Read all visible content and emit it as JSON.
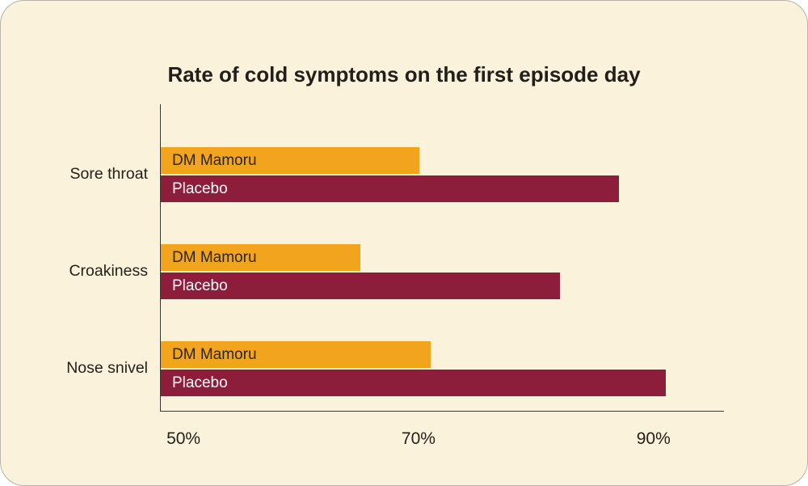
{
  "card": {
    "background_color": "#FAF2DA",
    "border_color": "#b6b3a8"
  },
  "chart_data": {
    "type": "bar",
    "orientation": "horizontal",
    "title": "Rate of cold symptoms on the first episode day",
    "categories": [
      "Sore throat",
      "Croakiness",
      "Nose snivel"
    ],
    "series": [
      {
        "name": "DM Mamoru",
        "color": "#F2A41F",
        "label_color": "#2B2520",
        "values": [
          70,
          65,
          71
        ]
      },
      {
        "name": "Placebo",
        "color": "#8C1E3C",
        "label_color": "#FFFFFF",
        "values": [
          87,
          82,
          91
        ]
      }
    ],
    "xlabel": "",
    "ylabel": "",
    "xlim": [
      48,
      96
    ],
    "xticks": [
      {
        "value": 50,
        "label": "50%"
      },
      {
        "value": 70,
        "label": "70%"
      },
      {
        "value": 90,
        "label": "90%"
      }
    ],
    "grid": false,
    "legend": "labels drawn inside bars",
    "value_unit": "%"
  }
}
